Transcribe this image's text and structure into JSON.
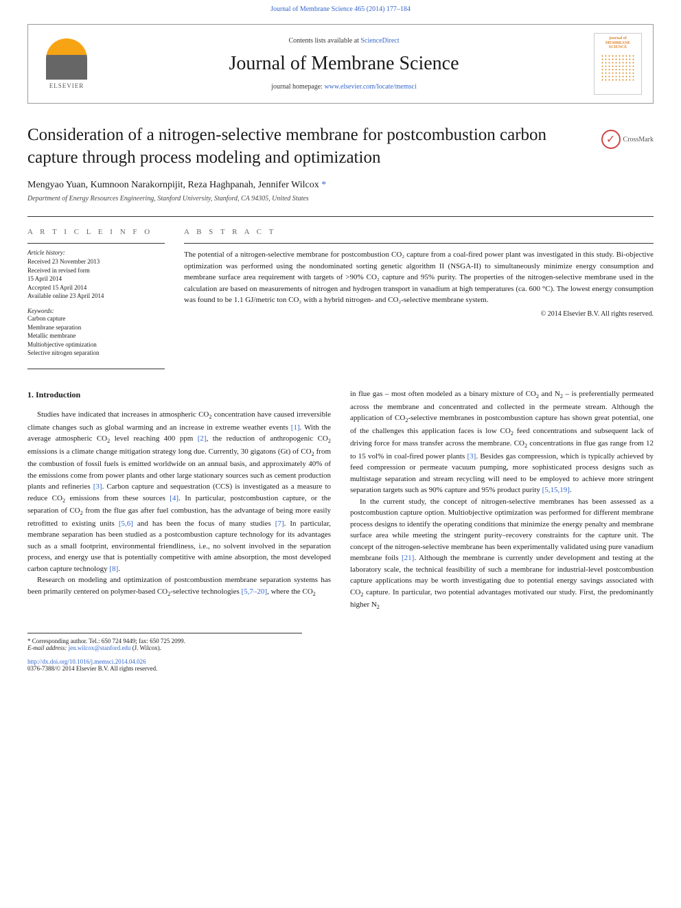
{
  "top_link": "Journal of Membrane Science 465 (2014) 177–184",
  "header": {
    "contents_prefix": "Contents lists available at ",
    "contents_link": "ScienceDirect",
    "journal_name": "Journal of Membrane Science",
    "homepage_prefix": "journal homepage: ",
    "homepage_link": "www.elsevier.com/locate/memsci",
    "elsevier": "ELSEVIER",
    "cover_title": "journal of MEMBRANE SCIENCE"
  },
  "crossmark": "CrossMark",
  "title": "Consideration of a nitrogen-selective membrane for postcombustion carbon capture through process modeling and optimization",
  "authors": "Mengyao Yuan, Kumnoon Narakornpijit, Reza Haghpanah, Jennifer Wilcox",
  "affiliation": "Department of Energy Resources Engineering, Stanford University, Stanford, CA 94305, United States",
  "article_info_heading": "A R T I C L E  I N F O",
  "abstract_heading": "A B S T R A C T",
  "history_label": "Article history:",
  "history": [
    "Received 23 November 2013",
    "Received in revised form",
    "15 April 2014",
    "Accepted 15 April 2014",
    "Available online 23 April 2014"
  ],
  "keywords_label": "Keywords:",
  "keywords": [
    "Carbon capture",
    "Membrane separation",
    "Metallic membrane",
    "Multiobjective optimization",
    "Selective nitrogen separation"
  ],
  "abstract": "The potential of a nitrogen-selective membrane for postcombustion CO₂ capture from a coal-fired power plant was investigated in this study. Bi-objective optimization was performed using the nondominated sorting genetic algorithm II (NSGA-II) to simultaneously minimize energy consumption and membrane surface area requirement with targets of >90% CO₂ capture and 95% purity. The properties of the nitrogen-selective membrane used in the calculation are based on measurements of nitrogen and hydrogen transport in vanadium at high temperatures (ca. 600 °C). The lowest energy consumption was found to be 1.1 GJ/metric ton CO₂ with a hybrid nitrogen- and CO₂-selective membrane system.",
  "copyright": "© 2014 Elsevier B.V. All rights reserved.",
  "section1_heading": "1.  Introduction",
  "body": {
    "p1": "Studies have indicated that increases in atmospheric CO₂ concentration have caused irreversible climate changes such as global warming and an increase in extreme weather events [1]. With the average atmospheric CO₂ level reaching 400 ppm [2], the reduction of anthropogenic CO₂ emissions is a climate change mitigation strategy long due. Currently, 30 gigatons (Gt) of CO₂ from the combustion of fossil fuels is emitted worldwide on an annual basis, and approximately 40% of the emissions come from power plants and other large stationary sources such as cement production plants and refineries [3]. Carbon capture and sequestration (CCS) is investigated as a measure to reduce CO₂ emissions from these sources [4]. In particular, postcombustion capture, or the separation of CO₂ from the flue gas after fuel combustion, has the advantage of being more easily retrofitted to existing units [5,6] and has been the focus of many studies [7]. In particular, membrane separation has been studied as a postcombustion capture technology for its advantages such as a small footprint, environmental friendliness, i.e., no solvent involved in the separation process, and energy use that is potentially competitive with amine absorption, the most developed carbon capture technology [8].",
    "p2": "Research on modeling and optimization of postcombustion membrane separation systems has been primarily centered on polymer-based CO₂-selective technologies [5,7–20], where the CO₂",
    "p3": "in flue gas – most often modeled as a binary mixture of CO₂ and N₂ – is preferentially permeated across the membrane and concentrated and collected in the permeate stream. Although the application of CO₂-selective membranes in postcombustion capture has shown great potential, one of the challenges this application faces is low CO₂ feed concentrations and subsequent lack of driving force for mass transfer across the membrane. CO₂ concentrations in flue gas range from 12 to 15 vol% in coal-fired power plants [3]. Besides gas compression, which is typically achieved by feed compression or permeate vacuum pumping, more sophisticated process designs such as multistage separation and stream recycling will need to be employed to achieve more stringent separation targets such as 90% capture and 95% product purity [5,15,19].",
    "p4": "In the current study, the concept of nitrogen-selective membranes has been assessed as a postcombustion capture option. Multiobjective optimization was performed for different membrane process designs to identify the operating conditions that minimize the energy penalty and membrane surface area while meeting the stringent purity–recovery constraints for the capture unit. The concept of the nitrogen-selective membrane has been experimentally validated using pure vanadium membrane foils [21]. Although the membrane is currently under development and testing at the laboratory scale, the technical feasibility of such a membrane for industrial-level postcombustion capture applications may be worth investigating due to potential energy savings associated with CO₂ capture. In particular, two potential advantages motivated our study. First, the predominantly higher N₂"
  },
  "footnote": {
    "corr": "* Corresponding author. Tel.: 650 724 9449; fax: 650 725 2099.",
    "email_label": "E-mail address: ",
    "email": "jen.wilcox@stanford.edu",
    "email_suffix": " (J. Wilcox)."
  },
  "doi": {
    "link": "http://dx.doi.org/10.1016/j.memsci.2014.04.026",
    "issn": "0376-7388/© 2014 Elsevier B.V. All rights reserved."
  },
  "colors": {
    "link": "#3366cc",
    "text": "#1a1a1a",
    "elsevier_orange": "#f7a414",
    "border": "#999999"
  },
  "typography": {
    "title_fontsize": 25,
    "journal_name_fontsize": 28,
    "body_fontsize": 11,
    "small_fontsize": 9
  }
}
